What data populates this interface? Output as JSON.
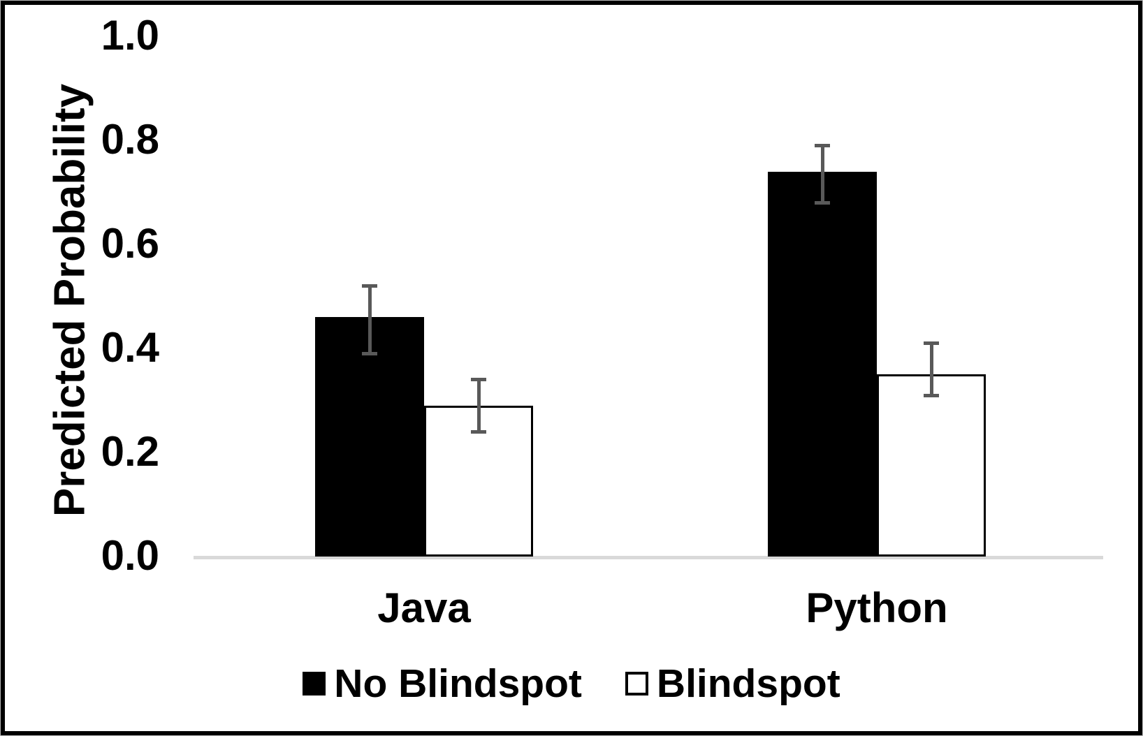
{
  "chart_data": {
    "type": "bar",
    "title": "",
    "xlabel": "",
    "ylabel": "Predicted Probability",
    "categories": [
      "Java",
      "Python"
    ],
    "series": [
      {
        "name": "No Blindspot",
        "values": [
          0.46,
          0.74
        ],
        "error_low": [
          0.39,
          0.68
        ],
        "error_high": [
          0.52,
          0.79
        ],
        "fill": "#000000",
        "border": "#000000"
      },
      {
        "name": "Blindspot",
        "values": [
          0.29,
          0.35
        ],
        "error_low": [
          0.24,
          0.31
        ],
        "error_high": [
          0.34,
          0.41
        ],
        "fill": "#ffffff",
        "border": "#000000"
      }
    ],
    "ylim": [
      0.0,
      1.0
    ],
    "yticks": [
      0.0,
      0.2,
      0.4,
      0.6,
      0.8,
      1.0
    ],
    "ytick_labels": [
      "0.0",
      "0.2",
      "0.4",
      "0.6",
      "0.8",
      "1.0"
    ],
    "grid": false,
    "legend_position": "bottom",
    "colors": {
      "error_bar": "#595959",
      "axis_line": "#d9d9d9",
      "text": "#000000",
      "background": "#ffffff",
      "frame_border": "#000000"
    }
  }
}
